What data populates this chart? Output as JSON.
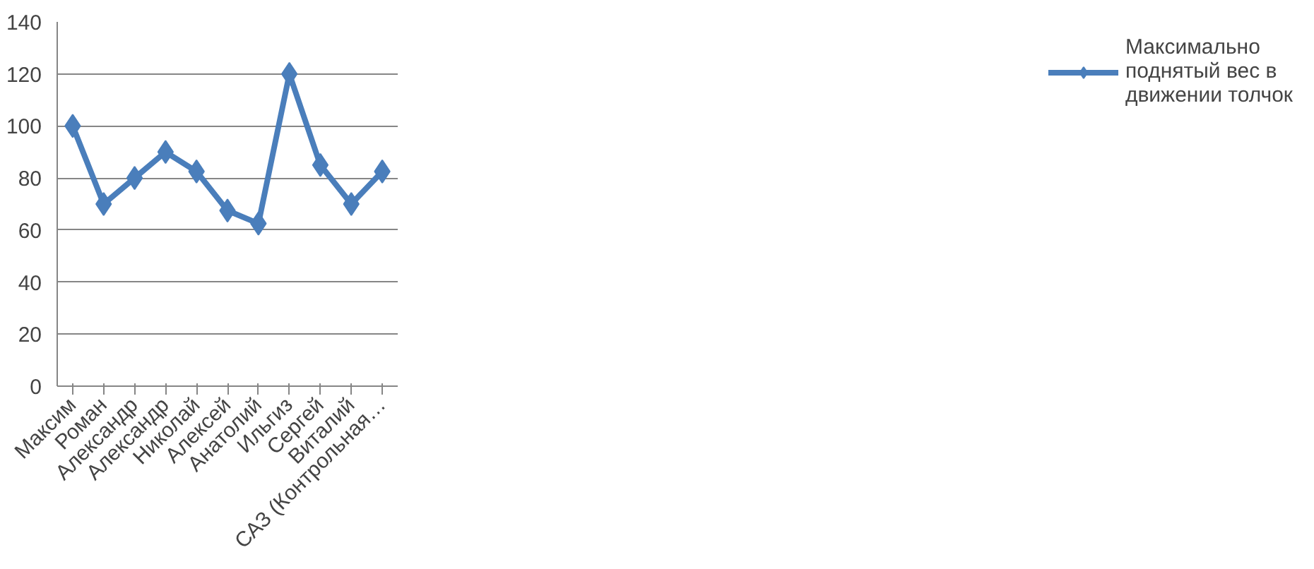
{
  "chart_data": {
    "type": "line",
    "categories": [
      "Максим",
      "Роман",
      "Александр",
      "Александр",
      "Николай",
      "Алексей",
      "Анатолий",
      "Ильгиз",
      "Сергей",
      "Виталий",
      "САЗ (Контрольная…"
    ],
    "series": [
      {
        "name": "Максимально поднятый вес в движении толчок",
        "color": "#4a7ebb",
        "values": [
          100,
          70,
          80,
          90,
          82.5,
          67.5,
          62.5,
          120,
          85,
          70,
          82.5
        ]
      }
    ],
    "ylim": [
      0,
      140
    ],
    "yticks": [
      0,
      20,
      40,
      60,
      80,
      100,
      120,
      140
    ],
    "grid": "y",
    "legend": "right",
    "marker": "diamond",
    "line_style": "solid"
  }
}
